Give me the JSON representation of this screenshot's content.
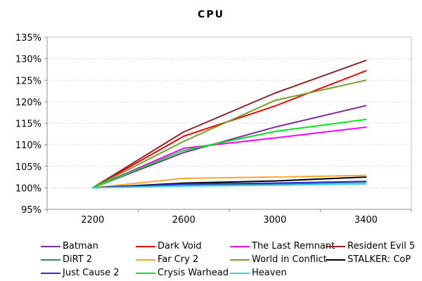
{
  "title": "CPU",
  "chart_data": {
    "type": "line",
    "title": "CPU",
    "x_labels": [
      "2200",
      "2600",
      "3000",
      "3400"
    ],
    "y_tick_labels": [
      "135%",
      "130%",
      "125%",
      "120%",
      "115%",
      "110%",
      "105%",
      "100%",
      "95%"
    ],
    "ylim": [
      95,
      135
    ],
    "y_step": 5,
    "grid": "horizontal-dotted",
    "legend_position": "bottom",
    "axis_color": "#8c8c8c",
    "grid_color": "#cccccc",
    "series": [
      {
        "name": "Batman",
        "color": "#7b31a2",
        "values": [
          100,
          108.2,
          114.1,
          119.1
        ]
      },
      {
        "name": "Dark Void",
        "color": "#ff0000",
        "values": [
          100,
          112.0,
          119.0,
          127.2
        ]
      },
      {
        "name": "The Last Remnant",
        "color": "#ff00ff",
        "values": [
          100,
          109.2,
          111.6,
          114.1
        ]
      },
      {
        "name": "Resident Evil 5",
        "color": "#8f2525",
        "values": [
          100,
          113.0,
          122.0,
          129.6
        ]
      },
      {
        "name": "DiRT 2",
        "color": "#31849b",
        "values": [
          100,
          100.7,
          100.9,
          101.3
        ]
      },
      {
        "name": "Far Cry 2",
        "color": "#ffa229",
        "values": [
          100,
          102.2,
          102.5,
          102.9
        ]
      },
      {
        "name": "World in Conflict",
        "color": "#71a32d",
        "values": [
          100,
          110.8,
          120.3,
          125.0
        ]
      },
      {
        "name": "STALKER: CoP",
        "color": "#000000",
        "values": [
          100,
          101.1,
          101.6,
          102.5
        ]
      },
      {
        "name": "Just Cause 2",
        "color": "#2f2fc9",
        "values": [
          100,
          100.9,
          101.1,
          101.5
        ]
      },
      {
        "name": "Crysis Warhead",
        "color": "#00e61e",
        "values": [
          100,
          108.7,
          113.1,
          115.9
        ]
      },
      {
        "name": "Heaven",
        "color": "#40d0e0",
        "values": [
          100,
          100.4,
          100.6,
          100.9
        ]
      }
    ]
  }
}
